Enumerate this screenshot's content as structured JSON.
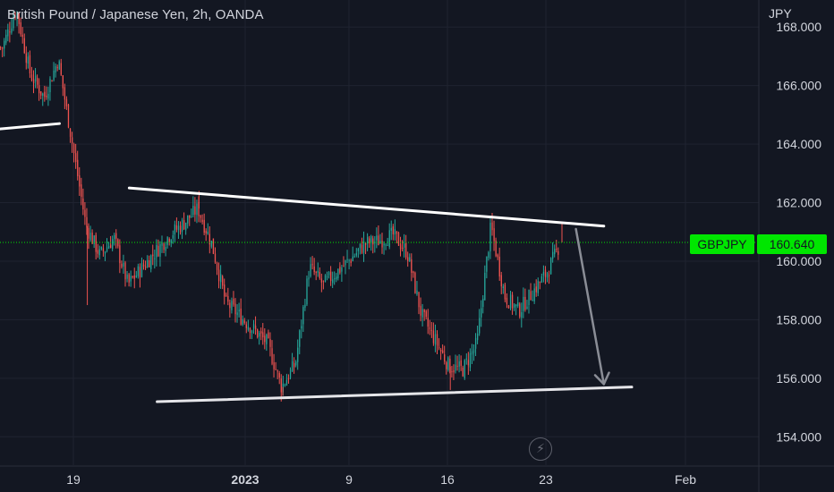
{
  "header": {
    "title": "British Pound / Japanese Yen, 2h, OANDA",
    "currency": "JPY"
  },
  "price_tag": {
    "symbol": "GBPJPY",
    "value": "160.640"
  },
  "icons": {
    "bolt": "lightning-bolt-icon"
  },
  "colors": {
    "background": "#131722",
    "up_candle": "#26a69a",
    "down_candle": "#ef5350",
    "trendline": "#ffffff",
    "arrow": "#8a8d96",
    "price_line": "#00e600",
    "axis_text": "#d1d4dc"
  },
  "chart_data": {
    "type": "candlestick",
    "symbol": "GBPJPY",
    "interval": "2h",
    "broker": "OANDA",
    "ylim": [
      153.0,
      169.0
    ],
    "y_ticks": [
      154.0,
      156.0,
      158.0,
      160.0,
      162.0,
      164.0,
      166.0,
      168.0
    ],
    "y_tick_labels": [
      "154.000",
      "156.000",
      "158.000",
      "160.000",
      "162.000",
      "164.000",
      "166.000",
      "168.000"
    ],
    "x_tick_labels": [
      "19",
      "2023",
      "9",
      "16",
      "23",
      "Feb"
    ],
    "last_price": 160.64,
    "price_path": [
      {
        "x": "Dec 14",
        "y": 167.3
      },
      {
        "x": "Dec 15",
        "y": 168.6
      },
      {
        "x": "Dec 16",
        "y": 166.4
      },
      {
        "x": "Dec 17",
        "y": 165.6
      },
      {
        "x": "Dec 18",
        "y": 166.9
      },
      {
        "x": "Dec 20",
        "y": 161.2
      },
      {
        "x": "Dec 21",
        "y": 160.2
      },
      {
        "x": "Dec 22",
        "y": 160.8
      },
      {
        "x": "Dec 23",
        "y": 159.2
      },
      {
        "x": "Dec 26",
        "y": 160.9
      },
      {
        "x": "Dec 27",
        "y": 161.3
      },
      {
        "x": "Dec 28",
        "y": 161.8
      },
      {
        "x": "Dec 29",
        "y": 160.6
      },
      {
        "x": "Dec 30",
        "y": 158.6
      },
      {
        "x": "Jan 2",
        "y": 157.2
      },
      {
        "x": "Jan 3",
        "y": 155.7
      },
      {
        "x": "Jan 4",
        "y": 156.5
      },
      {
        "x": "Jan 5",
        "y": 159.8
      },
      {
        "x": "Jan 6",
        "y": 159.2
      },
      {
        "x": "Jan 8",
        "y": 160.1
      },
      {
        "x": "Jan 9",
        "y": 160.6
      },
      {
        "x": "Jan 10",
        "y": 160.7
      },
      {
        "x": "Jan 11",
        "y": 160.9
      },
      {
        "x": "Jan 12",
        "y": 160.3
      },
      {
        "x": "Jan 13",
        "y": 158.2
      },
      {
        "x": "Jan 15",
        "y": 156.4
      },
      {
        "x": "Jan 16",
        "y": 156.3
      },
      {
        "x": "Jan 17",
        "y": 157.2
      },
      {
        "x": "Jan 18",
        "y": 161.2
      },
      {
        "x": "Jan 19",
        "y": 158.8
      },
      {
        "x": "Jan 20",
        "y": 158.3
      },
      {
        "x": "Jan 22",
        "y": 159.6
      },
      {
        "x": "Jan 23",
        "y": 160.64
      }
    ],
    "drawings": {
      "old_support": {
        "from": {
          "x": "Dec 11",
          "y": 164.4
        },
        "to": {
          "x": "Dec 18",
          "y": 164.7
        }
      },
      "upper_trendline": {
        "from": {
          "x": "Dec 23",
          "y": 162.5
        },
        "to": {
          "x": "Jan 26",
          "y": 161.2
        }
      },
      "lower_trendline": {
        "from": {
          "x": "Dec 25",
          "y": 155.2
        },
        "to": {
          "x": "Jan 28",
          "y": 155.7
        }
      },
      "projection_arrow": {
        "from": {
          "x": "Jan 24",
          "y": 161.1
        },
        "to": {
          "x": "Jan 26",
          "y": 155.8
        }
      }
    }
  }
}
